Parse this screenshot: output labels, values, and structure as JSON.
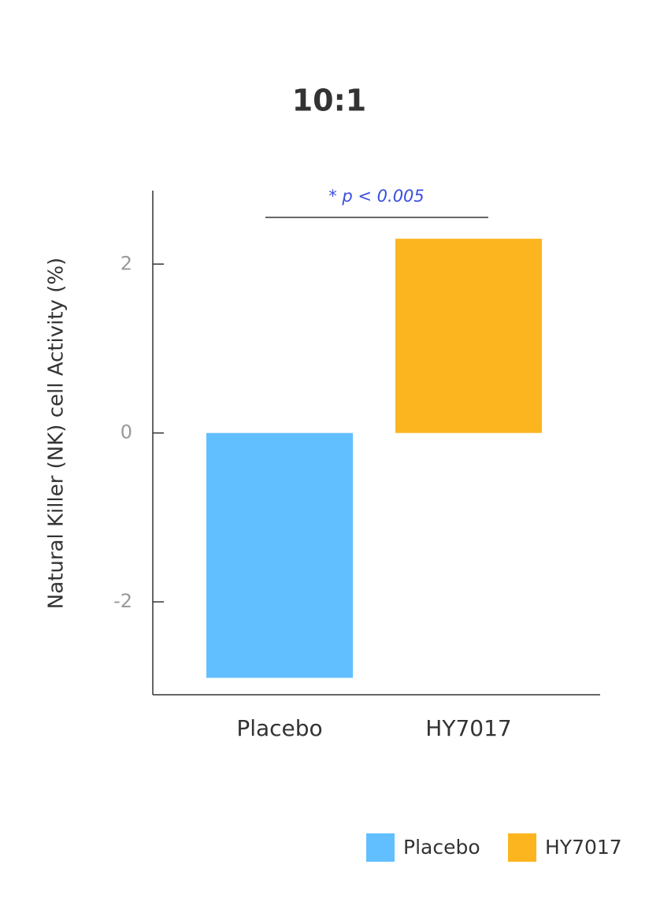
{
  "chart_data": {
    "type": "bar",
    "title": "10:1",
    "y_label": "Natural Killer (NK) cell Activity (%)",
    "categories": [
      "Placebo",
      "HY7017"
    ],
    "values": [
      -2.9,
      2.3
    ],
    "colors": [
      "#62bfff",
      "#fcb51f"
    ],
    "ylim": [
      -3.1,
      2.87
    ],
    "yticks": [
      -2,
      0,
      2
    ],
    "annotation": "* p < 0.005",
    "legend": [
      "Placebo",
      "HY7017"
    ],
    "legend_position": "bottom-right"
  }
}
